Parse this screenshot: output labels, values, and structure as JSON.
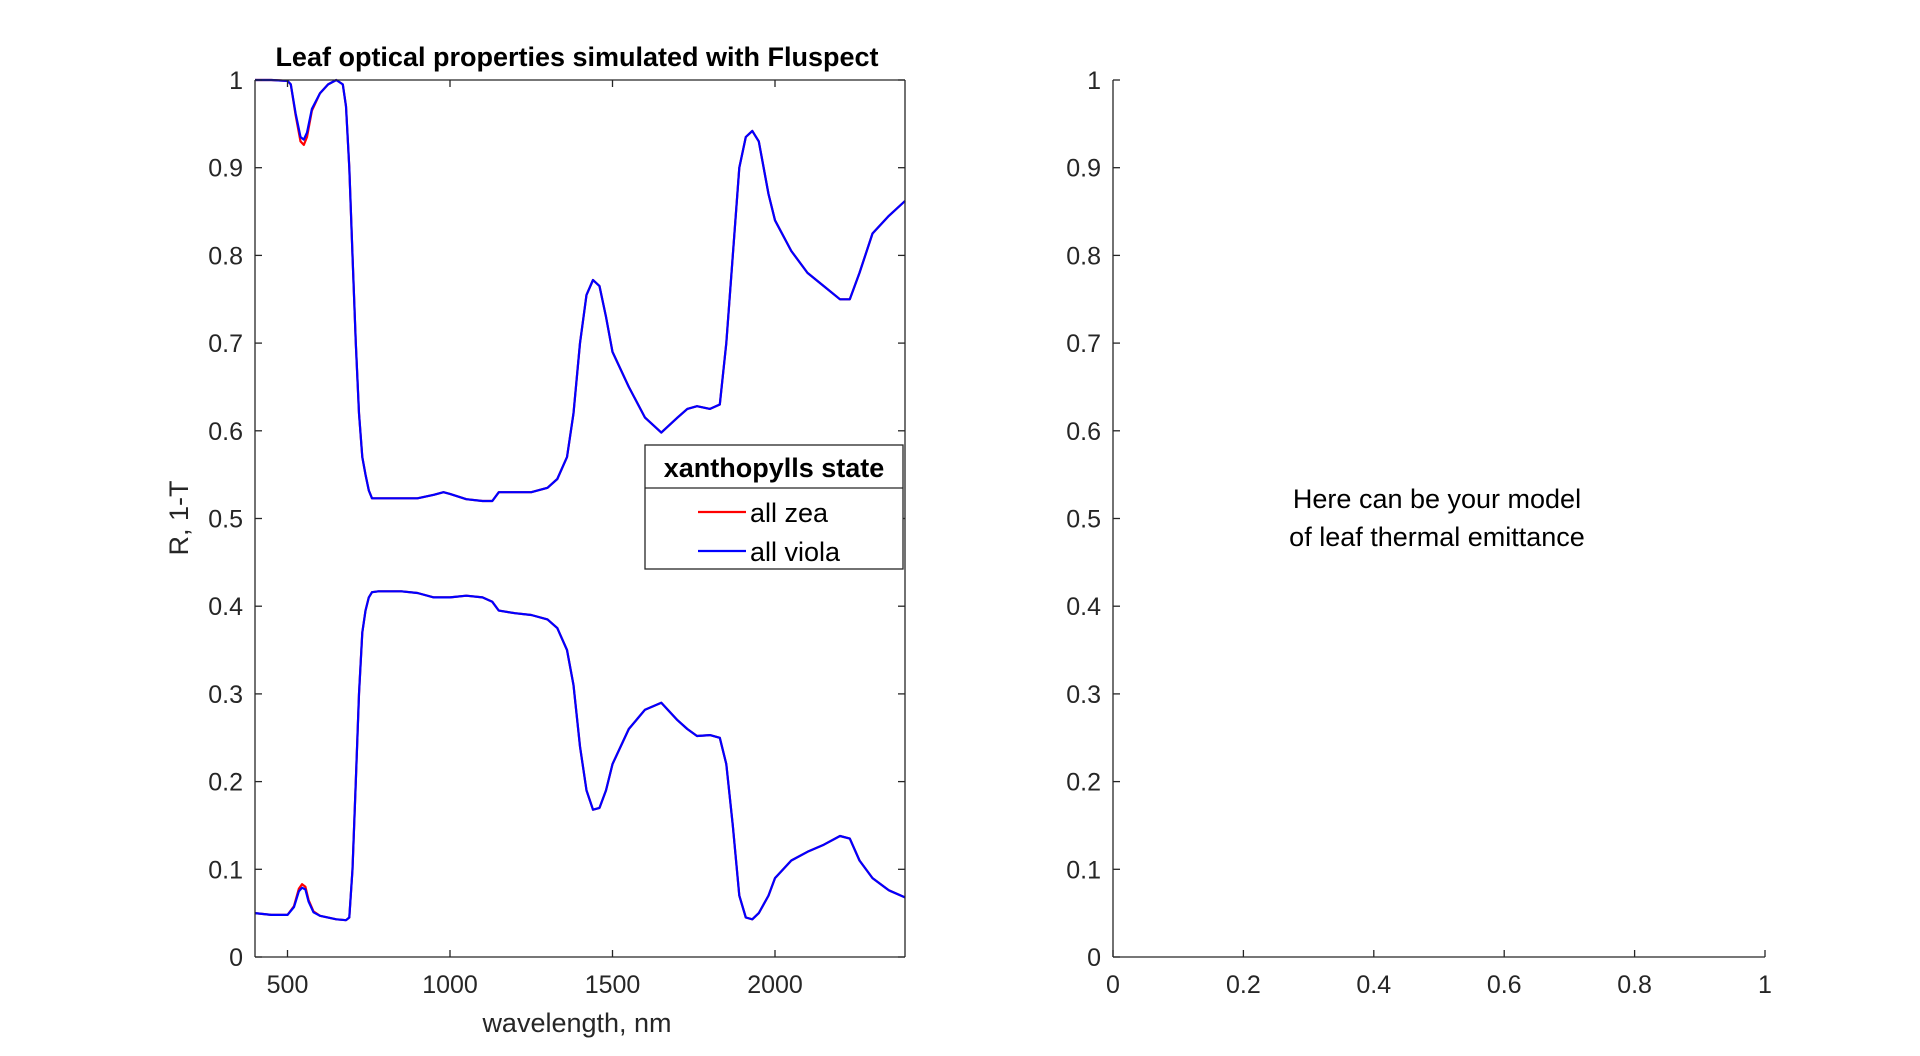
{
  "chart_data": [
    {
      "type": "line",
      "title": "Leaf optical properties simulated with Fluspect",
      "xlabel": "wavelength, nm",
      "ylabel": "R, 1-T",
      "xlim": [
        400,
        2400
      ],
      "ylim": [
        0,
        1
      ],
      "xticks": [
        500,
        1000,
        1500,
        2000
      ],
      "yticks": [
        0,
        0.1,
        0.2,
        0.3,
        0.4,
        0.5,
        0.6,
        0.7,
        0.8,
        0.9,
        1
      ],
      "grid": false,
      "legend": {
        "title": "xanthopylls state",
        "placement": "right",
        "entries": [
          "all zea",
          "all viola"
        ]
      },
      "series": [
        {
          "name": "all zea",
          "color": "#ff0000",
          "curves": [
            {
              "x": [
                400,
                450,
                500,
                510,
                525,
                540,
                550,
                560,
                575,
                600,
                625,
                650,
                670,
                680,
                690,
                700,
                710,
                720,
                730,
                740,
                750,
                760,
                780,
                800,
                850,
                900,
                950,
                980,
                1000,
                1050,
                1100,
                1130,
                1150,
                1200,
                1250,
                1300,
                1330,
                1360,
                1380,
                1400,
                1420,
                1440,
                1460,
                1480,
                1500,
                1550,
                1600,
                1650,
                1700,
                1730,
                1760,
                1800,
                1830,
                1850,
                1870,
                1890,
                1910,
                1930,
                1950,
                1980,
                2000,
                2050,
                2100,
                2150,
                2200,
                2230,
                2260,
                2300,
                2350,
                2400
              ],
              "y": [
                1.0,
                1.0,
                0.999,
                0.995,
                0.96,
                0.93,
                0.926,
                0.935,
                0.965,
                0.985,
                0.995,
                1.0,
                0.995,
                0.97,
                0.9,
                0.8,
                0.7,
                0.62,
                0.57,
                0.55,
                0.532,
                0.523,
                0.523,
                0.523,
                0.523,
                0.523,
                0.527,
                0.53,
                0.528,
                0.522,
                0.52,
                0.52,
                0.53,
                0.53,
                0.53,
                0.535,
                0.545,
                0.57,
                0.62,
                0.7,
                0.755,
                0.772,
                0.765,
                0.73,
                0.69,
                0.65,
                0.615,
                0.598,
                0.615,
                0.625,
                0.628,
                0.625,
                0.63,
                0.7,
                0.8,
                0.9,
                0.935,
                0.942,
                0.93,
                0.87,
                0.84,
                0.805,
                0.78,
                0.765,
                0.75,
                0.75,
                0.78,
                0.825,
                0.845,
                0.862
              ]
            },
            {
              "x": [
                400,
                450,
                500,
                520,
                535,
                545,
                555,
                565,
                580,
                600,
                650,
                680,
                690,
                700,
                710,
                720,
                730,
                740,
                750,
                760,
                780,
                800,
                850,
                900,
                950,
                980,
                1000,
                1050,
                1100,
                1130,
                1150,
                1200,
                1250,
                1300,
                1330,
                1360,
                1380,
                1400,
                1420,
                1440,
                1460,
                1480,
                1500,
                1550,
                1600,
                1650,
                1700,
                1730,
                1760,
                1800,
                1830,
                1850,
                1870,
                1890,
                1910,
                1930,
                1950,
                1980,
                2000,
                2050,
                2100,
                2150,
                2200,
                2230,
                2260,
                2300,
                2350,
                2400
              ],
              "y": [
                0.05,
                0.048,
                0.048,
                0.058,
                0.078,
                0.083,
                0.08,
                0.065,
                0.052,
                0.047,
                0.043,
                0.042,
                0.045,
                0.1,
                0.2,
                0.3,
                0.37,
                0.395,
                0.41,
                0.416,
                0.417,
                0.417,
                0.417,
                0.415,
                0.41,
                0.41,
                0.41,
                0.412,
                0.41,
                0.405,
                0.395,
                0.392,
                0.39,
                0.385,
                0.375,
                0.35,
                0.31,
                0.24,
                0.19,
                0.168,
                0.17,
                0.19,
                0.22,
                0.26,
                0.282,
                0.29,
                0.27,
                0.26,
                0.252,
                0.253,
                0.25,
                0.22,
                0.15,
                0.07,
                0.045,
                0.043,
                0.05,
                0.07,
                0.09,
                0.11,
                0.12,
                0.128,
                0.138,
                0.135,
                0.11,
                0.09,
                0.076,
                0.068
              ]
            }
          ]
        },
        {
          "name": "all viola",
          "color": "#0000ff",
          "curves": [
            {
              "x": [
                400,
                450,
                500,
                510,
                525,
                540,
                550,
                560,
                575,
                600,
                625,
                650,
                670,
                680,
                690,
                700,
                710,
                720,
                730,
                740,
                750,
                760,
                780,
                800,
                850,
                900,
                950,
                980,
                1000,
                1050,
                1100,
                1130,
                1150,
                1200,
                1250,
                1300,
                1330,
                1360,
                1380,
                1400,
                1420,
                1440,
                1460,
                1480,
                1500,
                1550,
                1600,
                1650,
                1700,
                1730,
                1760,
                1800,
                1830,
                1850,
                1870,
                1890,
                1910,
                1930,
                1950,
                1980,
                2000,
                2050,
                2100,
                2150,
                2200,
                2230,
                2260,
                2300,
                2350,
                2400
              ],
              "y": [
                1.0,
                1.0,
                0.999,
                0.995,
                0.962,
                0.935,
                0.932,
                0.94,
                0.967,
                0.985,
                0.995,
                1.0,
                0.995,
                0.97,
                0.9,
                0.8,
                0.7,
                0.62,
                0.57,
                0.55,
                0.532,
                0.523,
                0.523,
                0.523,
                0.523,
                0.523,
                0.527,
                0.53,
                0.528,
                0.522,
                0.52,
                0.52,
                0.53,
                0.53,
                0.53,
                0.535,
                0.545,
                0.57,
                0.62,
                0.7,
                0.755,
                0.772,
                0.765,
                0.73,
                0.69,
                0.65,
                0.615,
                0.598,
                0.615,
                0.625,
                0.628,
                0.625,
                0.63,
                0.7,
                0.8,
                0.9,
                0.935,
                0.942,
                0.93,
                0.87,
                0.84,
                0.805,
                0.78,
                0.765,
                0.75,
                0.75,
                0.78,
                0.825,
                0.845,
                0.862
              ]
            },
            {
              "x": [
                400,
                450,
                500,
                520,
                535,
                545,
                555,
                565,
                580,
                600,
                650,
                680,
                690,
                700,
                710,
                720,
                730,
                740,
                750,
                760,
                780,
                800,
                850,
                900,
                950,
                980,
                1000,
                1050,
                1100,
                1130,
                1150,
                1200,
                1250,
                1300,
                1330,
                1360,
                1380,
                1400,
                1420,
                1440,
                1460,
                1480,
                1500,
                1550,
                1600,
                1650,
                1700,
                1730,
                1760,
                1800,
                1830,
                1850,
                1870,
                1890,
                1910,
                1930,
                1950,
                1980,
                2000,
                2050,
                2100,
                2150,
                2200,
                2230,
                2260,
                2300,
                2350,
                2400
              ],
              "y": [
                0.05,
                0.048,
                0.048,
                0.057,
                0.075,
                0.079,
                0.077,
                0.063,
                0.051,
                0.047,
                0.043,
                0.042,
                0.045,
                0.1,
                0.2,
                0.3,
                0.37,
                0.395,
                0.41,
                0.416,
                0.417,
                0.417,
                0.417,
                0.415,
                0.41,
                0.41,
                0.41,
                0.412,
                0.41,
                0.405,
                0.395,
                0.392,
                0.39,
                0.385,
                0.375,
                0.35,
                0.31,
                0.24,
                0.19,
                0.168,
                0.17,
                0.19,
                0.22,
                0.26,
                0.282,
                0.29,
                0.27,
                0.26,
                0.252,
                0.253,
                0.25,
                0.22,
                0.15,
                0.07,
                0.045,
                0.043,
                0.05,
                0.07,
                0.09,
                0.11,
                0.12,
                0.128,
                0.138,
                0.135,
                0.11,
                0.09,
                0.076,
                0.068
              ]
            }
          ]
        }
      ]
    },
    {
      "type": "line",
      "title": "",
      "xlabel": "",
      "ylabel": "",
      "xlim": [
        0,
        1
      ],
      "ylim": [
        0,
        1
      ],
      "xticks": [
        0,
        0.2,
        0.4,
        0.6,
        0.8,
        1
      ],
      "yticks": [
        0,
        0.1,
        0.2,
        0.3,
        0.4,
        0.5,
        0.6,
        0.7,
        0.8,
        0.9,
        1
      ],
      "grid": false,
      "annotation": [
        "Here can be your model",
        "of leaf thermal emittance"
      ],
      "series": []
    }
  ]
}
